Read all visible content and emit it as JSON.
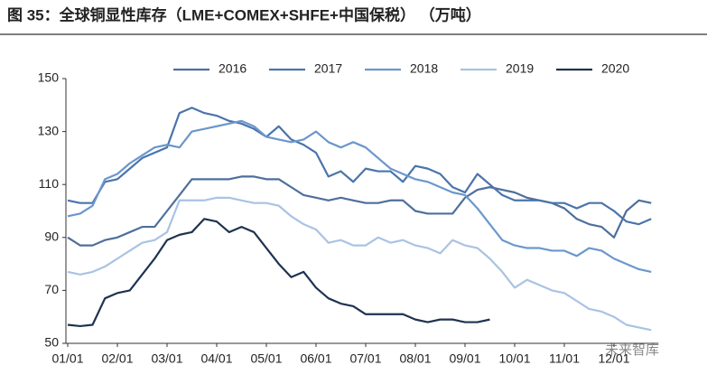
{
  "chart_data": {
    "type": "line",
    "title": "图 35：全球铜显性库存（LME+COMEX+SHFE+中国保税）  （万吨）",
    "watermark": "未来智库",
    "categories": [
      "01/01",
      null,
      null,
      null,
      "02/01",
      null,
      null,
      null,
      "03/01",
      null,
      null,
      null,
      "04/01",
      null,
      null,
      null,
      "05/01",
      null,
      null,
      null,
      "06/01",
      null,
      null,
      null,
      "07/01",
      null,
      null,
      null,
      "08/01",
      null,
      null,
      null,
      "09/01",
      null,
      null,
      null,
      "10/01",
      null,
      null,
      null,
      "11/01",
      null,
      null,
      null,
      "12/01",
      null,
      null,
      null
    ],
    "series": [
      {
        "name": "2016",
        "color": "#4e6f9c",
        "values": [
          90,
          87,
          87,
          89,
          90,
          92,
          94,
          94,
          100,
          106,
          112,
          112,
          112,
          112,
          113,
          113,
          112,
          112,
          109,
          106,
          105,
          104,
          105,
          104,
          103,
          103,
          104,
          104,
          100,
          99,
          99,
          99,
          105,
          108,
          109,
          108,
          107,
          105,
          104,
          103,
          101,
          97,
          95,
          94,
          90,
          100,
          104,
          103
        ]
      },
      {
        "name": "2017",
        "color": "#4a74ab",
        "values": [
          104,
          103,
          103,
          111,
          112,
          116,
          120,
          122,
          124,
          137,
          139,
          137,
          136,
          134,
          133,
          131,
          128,
          132,
          127,
          125,
          122,
          113,
          115,
          111,
          116,
          115,
          115,
          111,
          117,
          116,
          114,
          109,
          107,
          114,
          110,
          106,
          104,
          104,
          104,
          103,
          103,
          101,
          103,
          103,
          100,
          96,
          95,
          97
        ]
      },
      {
        "name": "2018",
        "color": "#6a97cc",
        "values": [
          98,
          99,
          102,
          112,
          114,
          118,
          121,
          124,
          125,
          124,
          130,
          131,
          132,
          133,
          134,
          132,
          128,
          127,
          126,
          127,
          130,
          126,
          124,
          126,
          124,
          120,
          116,
          114,
          112,
          111,
          109,
          107,
          106,
          101,
          95,
          89,
          87,
          86,
          86,
          85,
          85,
          83,
          86,
          85,
          82,
          80,
          78,
          77
        ]
      },
      {
        "name": "2019",
        "color": "#a9c3e3",
        "values": [
          77,
          76,
          77,
          79,
          82,
          85,
          88,
          89,
          92,
          104,
          104,
          104,
          105,
          105,
          104,
          103,
          103,
          102,
          98,
          95,
          93,
          88,
          89,
          87,
          87,
          90,
          88,
          89,
          87,
          86,
          84,
          89,
          87,
          86,
          82,
          77,
          71,
          74,
          72,
          70,
          69,
          66,
          63,
          62,
          60,
          57,
          56,
          55
        ]
      },
      {
        "name": "2020",
        "color": "#1f3350",
        "values": [
          57,
          56.5,
          57,
          67,
          69,
          70,
          76,
          82,
          89,
          91,
          92,
          97,
          96,
          92,
          94,
          92,
          86,
          80,
          75,
          77,
          71,
          67,
          65,
          64,
          61,
          61,
          61,
          61,
          59,
          58,
          59,
          59,
          58,
          58,
          59,
          null,
          null,
          null,
          null,
          null,
          null,
          null,
          null,
          null,
          null,
          null,
          null,
          null
        ]
      }
    ],
    "ylim": [
      50,
      150
    ],
    "yticks": [
      50,
      70,
      90,
      110,
      130,
      150
    ],
    "grid": false,
    "legend": "top"
  }
}
